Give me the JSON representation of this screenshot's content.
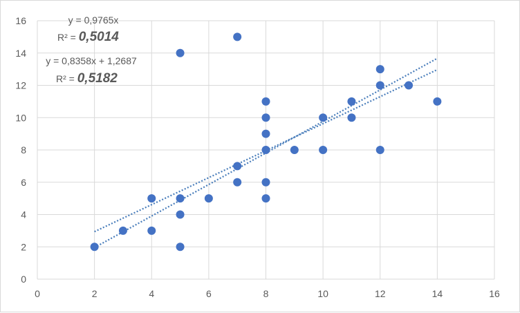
{
  "chart_data": {
    "type": "scatter",
    "title": "",
    "xlabel": "",
    "ylabel": "",
    "xlim": [
      0,
      16
    ],
    "ylim": [
      0,
      16
    ],
    "xticks": [
      0,
      2,
      4,
      6,
      8,
      10,
      12,
      14,
      16
    ],
    "yticks": [
      0,
      2,
      4,
      6,
      8,
      10,
      12,
      14,
      16
    ],
    "grid": "vertical and horizontal",
    "legend": "none",
    "marker_color": "#4472C4",
    "trendline_color": "#4A7EBB",
    "points": [
      {
        "x": 2,
        "y": 2
      },
      {
        "x": 3,
        "y": 3
      },
      {
        "x": 4,
        "y": 3
      },
      {
        "x": 4,
        "y": 5
      },
      {
        "x": 5,
        "y": 2
      },
      {
        "x": 5,
        "y": 4
      },
      {
        "x": 5,
        "y": 5
      },
      {
        "x": 5,
        "y": 14
      },
      {
        "x": 6,
        "y": 5
      },
      {
        "x": 7,
        "y": 6
      },
      {
        "x": 7,
        "y": 7
      },
      {
        "x": 7,
        "y": 15
      },
      {
        "x": 8,
        "y": 5
      },
      {
        "x": 8,
        "y": 6
      },
      {
        "x": 8,
        "y": 8
      },
      {
        "x": 8,
        "y": 9
      },
      {
        "x": 8,
        "y": 10
      },
      {
        "x": 8,
        "y": 11
      },
      {
        "x": 9,
        "y": 8
      },
      {
        "x": 10,
        "y": 8
      },
      {
        "x": 10,
        "y": 10
      },
      {
        "x": 11,
        "y": 10
      },
      {
        "x": 11,
        "y": 11
      },
      {
        "x": 12,
        "y": 8
      },
      {
        "x": 12,
        "y": 12
      },
      {
        "x": 12,
        "y": 13
      },
      {
        "x": 13,
        "y": 12
      },
      {
        "x": 14,
        "y": 11
      }
    ],
    "trendlines": [
      {
        "slope": 0.9765,
        "intercept": 0,
        "x_range": [
          2,
          14
        ],
        "equation": "y = 0,9765x",
        "r2_prefix": "R² = ",
        "r2_value": "0,5014"
      },
      {
        "slope": 0.8358,
        "intercept": 1.2687,
        "x_range": [
          2,
          14
        ],
        "equation": "y = 0,8358x + 1,2687",
        "r2_prefix": "R² = ",
        "r2_value": "0,5182"
      }
    ]
  }
}
